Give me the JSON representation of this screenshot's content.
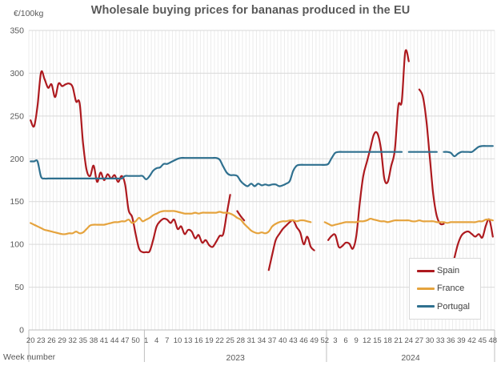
{
  "chart_data": {
    "type": "line",
    "title": "Wholesale buying prices for bananas produced in the EU",
    "unit_label": "€/100kg",
    "x_axis_label": "Week number",
    "ylim": [
      0,
      350
    ],
    "ytick_interval": 50,
    "yticks": [
      0,
      50,
      100,
      150,
      200,
      250,
      300,
      350
    ],
    "grid": "weekly vertical + 50-step horizontal",
    "legend_position": "bottom-right",
    "x_ticks": [
      {
        "i": 0,
        "label": "20"
      },
      {
        "i": 3,
        "label": "23"
      },
      {
        "i": 6,
        "label": "26"
      },
      {
        "i": 9,
        "label": "29"
      },
      {
        "i": 12,
        "label": "32"
      },
      {
        "i": 15,
        "label": "35"
      },
      {
        "i": 18,
        "label": "38"
      },
      {
        "i": 21,
        "label": "41"
      },
      {
        "i": 24,
        "label": "44"
      },
      {
        "i": 27,
        "label": "47"
      },
      {
        "i": 30,
        "label": "50"
      },
      {
        "i": 33,
        "label": "1"
      },
      {
        "i": 36,
        "label": "4"
      },
      {
        "i": 39,
        "label": "7"
      },
      {
        "i": 42,
        "label": "10"
      },
      {
        "i": 45,
        "label": "13"
      },
      {
        "i": 48,
        "label": "16"
      },
      {
        "i": 51,
        "label": "19"
      },
      {
        "i": 54,
        "label": "22"
      },
      {
        "i": 57,
        "label": "25"
      },
      {
        "i": 60,
        "label": "28"
      },
      {
        "i": 63,
        "label": "31"
      },
      {
        "i": 66,
        "label": "34"
      },
      {
        "i": 69,
        "label": "37"
      },
      {
        "i": 72,
        "label": "40"
      },
      {
        "i": 75,
        "label": "43"
      },
      {
        "i": 78,
        "label": "46"
      },
      {
        "i": 81,
        "label": "49"
      },
      {
        "i": 84,
        "label": "52"
      },
      {
        "i": 87,
        "label": "3"
      },
      {
        "i": 90,
        "label": "6"
      },
      {
        "i": 93,
        "label": "9"
      },
      {
        "i": 96,
        "label": "12"
      },
      {
        "i": 99,
        "label": "15"
      },
      {
        "i": 102,
        "label": "18"
      },
      {
        "i": 105,
        "label": "21"
      },
      {
        "i": 108,
        "label": "24"
      },
      {
        "i": 111,
        "label": "27"
      },
      {
        "i": 114,
        "label": "30"
      },
      {
        "i": 117,
        "label": "33"
      },
      {
        "i": 120,
        "label": "36"
      },
      {
        "i": 123,
        "label": "39"
      },
      {
        "i": 126,
        "label": "42"
      },
      {
        "i": 129,
        "label": "45"
      },
      {
        "i": 132,
        "label": "48"
      }
    ],
    "year_groups": [
      {
        "label": "",
        "center_index": 16
      },
      {
        "label": "2023",
        "center_index": 58.5
      },
      {
        "label": "2024",
        "center_index": 108.5
      }
    ],
    "year_separator_indices": [
      33,
      85
    ],
    "series": [
      {
        "name": "Spain",
        "color": "#ad1a1f",
        "values": [
          245,
          238,
          262,
          301,
          293,
          283,
          287,
          272,
          288,
          285,
          287,
          288,
          284,
          267,
          265,
          218,
          187,
          180,
          192,
          173,
          184,
          175,
          182,
          177,
          181,
          173,
          180,
          170,
          140,
          132,
          112,
          95,
          91,
          91,
          92,
          105,
          121,
          127,
          130,
          129,
          125,
          129,
          118,
          121,
          112,
          117,
          115,
          107,
          111,
          102,
          105,
          99,
          97,
          103,
          110,
          112,
          135,
          158,
          null,
          139,
          133,
          128,
          null,
          null,
          null,
          null,
          null,
          null,
          70,
          88,
          105,
          112,
          118,
          122,
          126,
          128,
          120,
          114,
          100,
          109,
          97,
          93,
          null,
          null,
          null,
          105,
          110,
          111,
          97,
          98,
          102,
          101,
          95,
          110,
          148,
          180,
          196,
          212,
          228,
          230,
          213,
          177,
          173,
          192,
          210,
          262,
          267,
          325,
          314,
          null,
          null,
          281,
          273,
          245,
          202,
          158,
          133,
          124,
          124,
          null,
          null,
          84,
          100,
          110,
          114,
          115,
          112,
          109,
          112,
          108,
          122,
          129,
          109
        ]
      },
      {
        "name": "France",
        "color": "#e5a33d",
        "values": [
          125,
          123,
          121,
          119,
          117,
          116,
          115,
          114,
          113,
          112,
          112,
          113,
          113,
          115,
          113,
          114,
          118,
          122,
          123,
          123,
          123,
          123,
          124,
          125,
          126,
          126,
          127,
          127,
          129,
          125,
          127,
          131,
          127,
          129,
          131,
          134,
          136,
          138,
          139,
          139,
          139,
          139,
          138,
          137,
          136,
          136,
          136,
          137,
          136,
          137,
          137,
          137,
          137,
          137,
          138,
          137,
          137,
          136,
          134,
          131,
          129,
          124,
          120,
          116,
          114,
          113,
          114,
          113,
          115,
          121,
          124,
          126,
          127,
          127,
          128,
          128,
          127,
          128,
          128,
          127,
          126,
          null,
          null,
          null,
          126,
          124,
          122,
          123,
          124,
          125,
          126,
          126,
          126,
          126,
          127,
          127,
          128,
          130,
          129,
          128,
          127,
          127,
          126,
          127,
          128,
          128,
          128,
          128,
          128,
          127,
          127,
          128,
          127,
          127,
          127,
          127,
          126,
          126,
          126,
          125,
          126,
          126,
          126,
          126,
          126,
          126,
          126,
          126,
          127,
          127,
          129,
          129,
          128
        ]
      },
      {
        "name": "Portugal",
        "color": "#2f708f",
        "values": [
          197,
          197,
          197,
          179,
          177,
          177,
          177,
          177,
          177,
          177,
          177,
          177,
          177,
          177,
          177,
          177,
          177,
          177,
          177,
          177,
          177,
          177,
          177,
          177,
          177,
          177,
          177,
          180,
          180,
          180,
          180,
          180,
          180,
          176,
          180,
          186,
          189,
          190,
          194,
          194,
          196,
          198,
          200,
          201,
          201,
          201,
          201,
          201,
          201,
          201,
          201,
          201,
          201,
          201,
          199,
          191,
          184,
          181,
          181,
          180,
          174,
          170,
          168,
          171,
          168,
          171,
          169,
          170,
          169,
          170,
          170,
          168,
          169,
          171,
          174,
          186,
          192,
          193,
          193,
          193,
          193,
          193,
          193,
          193,
          193,
          194,
          201,
          207,
          208,
          208,
          208,
          208,
          208,
          208,
          208,
          208,
          208,
          208,
          208,
          208,
          208,
          208,
          208,
          208,
          208,
          208,
          208,
          null,
          208,
          208,
          208,
          208,
          208,
          208,
          208,
          208,
          208,
          null,
          208,
          208,
          207,
          203,
          206,
          208,
          208,
          208,
          208,
          211,
          214,
          215,
          215,
          215,
          215
        ]
      }
    ]
  },
  "colors": {
    "title_text": "#595959",
    "tick_text": "#595959",
    "legend_text": "#404040",
    "grid_minor_v": "#ececec",
    "grid_major_h": "#d9d9d9",
    "axis_line": "#bfbfbf",
    "separator_line": "#bfbfbf",
    "background": "#ffffff"
  }
}
